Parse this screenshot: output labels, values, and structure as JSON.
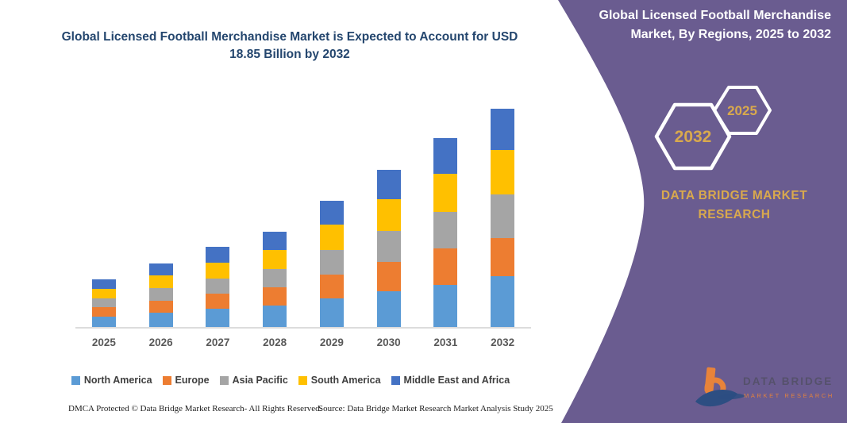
{
  "page": {
    "background": "#ffffff"
  },
  "chart_data": {
    "type": "bar",
    "stacked": true,
    "title": "Global Licensed Football Merchandise Market is Expected to Account for USD 18.85 Billion by 2032",
    "unit": "USD Billion",
    "categories": [
      "2025",
      "2026",
      "2027",
      "2028",
      "2029",
      "2030",
      "2031",
      "2032"
    ],
    "series": [
      {
        "name": "North America",
        "color": "#5b9bd5",
        "values": [
          0.92,
          1.24,
          1.55,
          1.85,
          2.45,
          3.06,
          3.67,
          4.38
        ]
      },
      {
        "name": "Europe",
        "color": "#ed7d31",
        "values": [
          0.78,
          1.05,
          1.31,
          1.56,
          2.07,
          2.58,
          3.1,
          3.3
        ]
      },
      {
        "name": "Asia Pacific",
        "color": "#a5a5a5",
        "values": [
          0.8,
          1.07,
          1.35,
          1.6,
          2.13,
          2.65,
          3.18,
          3.74
        ]
      },
      {
        "name": "South America",
        "color": "#ffc000",
        "values": [
          0.82,
          1.1,
          1.38,
          1.64,
          2.18,
          2.72,
          3.26,
          3.88
        ]
      },
      {
        "name": "Middle East and Africa",
        "color": "#4472c4",
        "values": [
          0.78,
          1.05,
          1.31,
          1.56,
          2.07,
          2.58,
          3.1,
          3.55
        ]
      }
    ],
    "totals_estimated": [
      4.1,
      5.51,
      6.9,
      8.21,
      10.9,
      13.59,
      16.31,
      18.85
    ],
    "ylim": [
      0,
      19
    ],
    "grid": false,
    "y_axis_visible": false,
    "axis_line_color": "#dcdcdc",
    "tick_label_color": "#595959",
    "legend_position": "bottom"
  },
  "footer": {
    "dmca": "DMCA Protected © Data Bridge Market Research-  All Rights Reserved.",
    "source": "Source: Data Bridge Market Research  Market Analysis Study 2025"
  },
  "right_panel": {
    "background": "#6a5c90",
    "title": "Global Licensed Football Merchandise Market, By Regions, 2025 to 2032",
    "title_color": "#ffffff",
    "accent_color": "#d9a94d",
    "hexagon_large_label": "2032",
    "hexagon_small_label": "2025",
    "brand": "DATA BRIDGE MARKET RESEARCH",
    "logo_line1": "DATA BRIDGE",
    "logo_line2": "MARKET RESEARCH"
  }
}
